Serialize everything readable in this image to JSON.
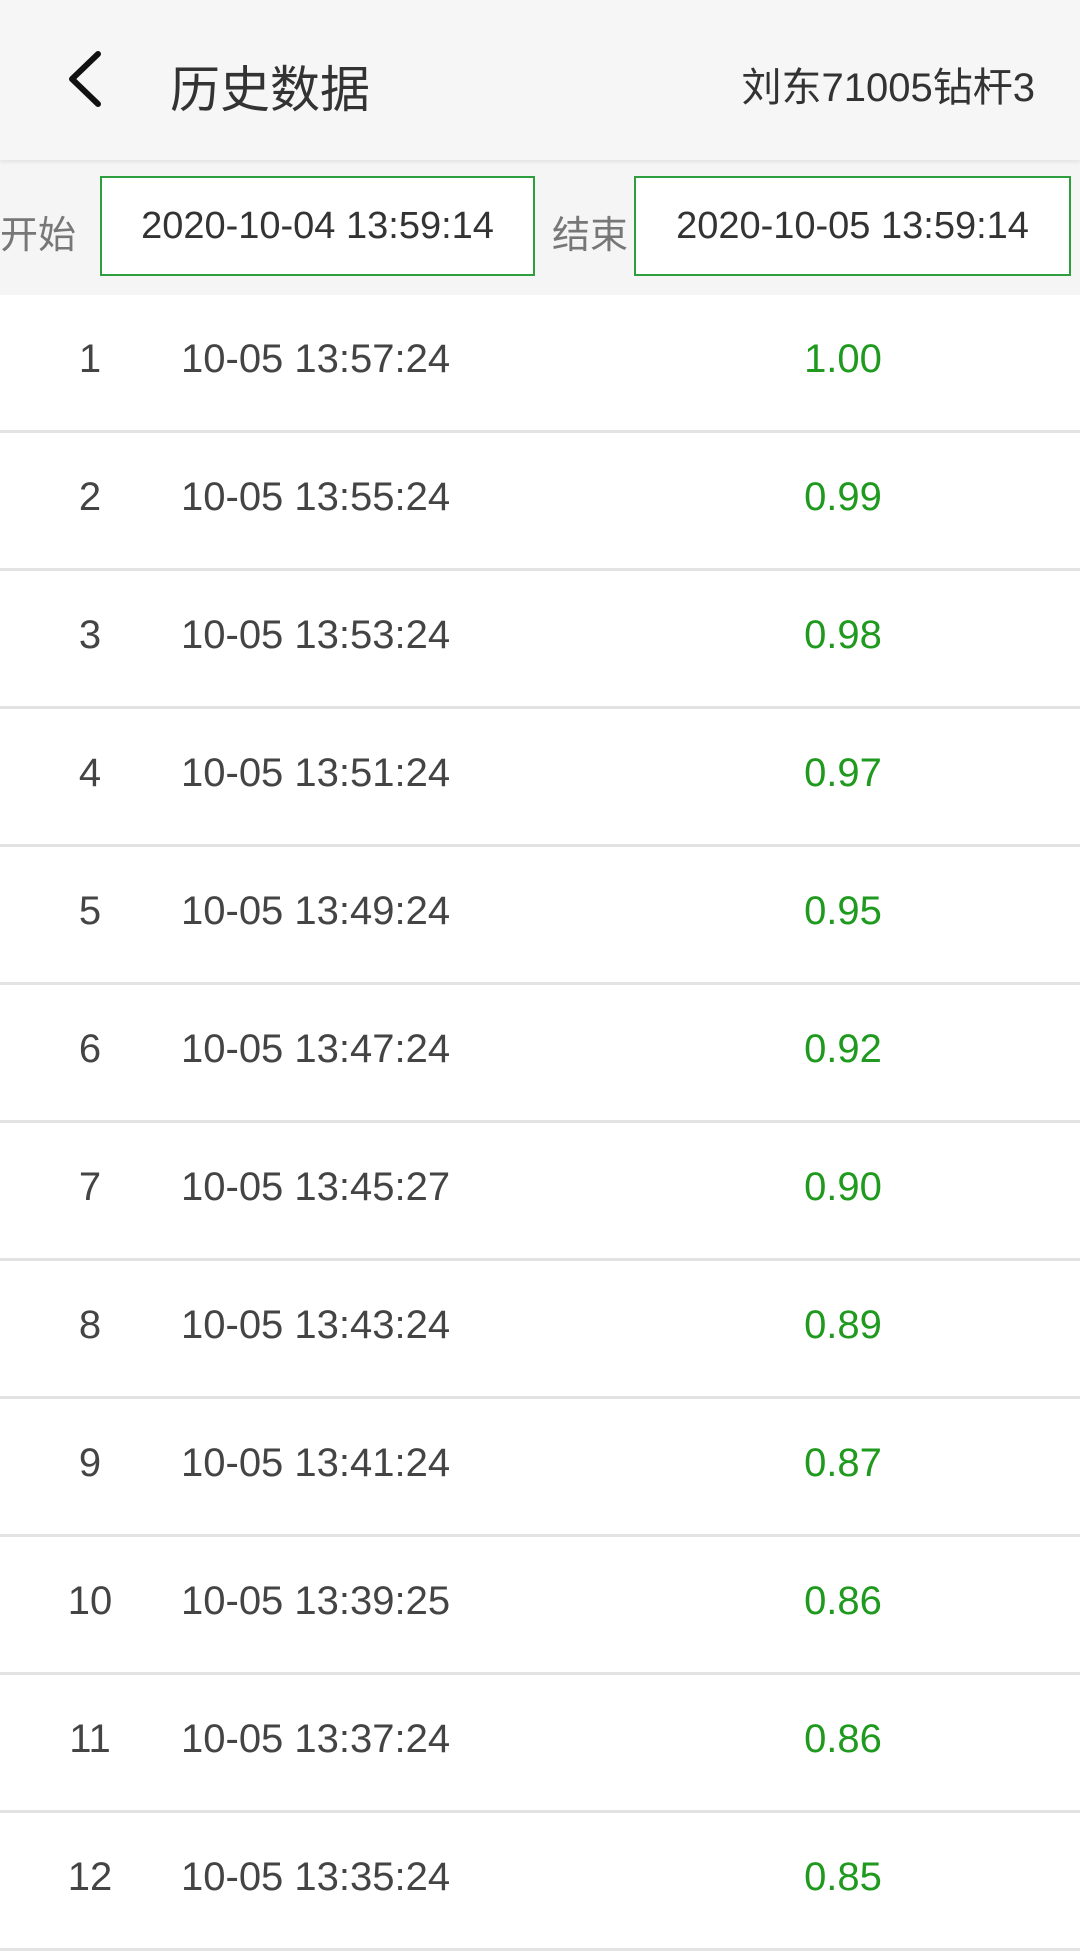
{
  "header": {
    "title": "历史数据",
    "device": "刘东71005钻杆3",
    "back_icon": "chevron-left-icon"
  },
  "filter": {
    "start_label": "开始",
    "start_value": "2020-10-04 13:59:14",
    "end_label": "结束",
    "end_value": "2020-10-05 13:59:14"
  },
  "colors": {
    "accent": "#2e9e3e",
    "value": "#1f9a1f"
  },
  "rows": [
    {
      "index": "1",
      "time": "10-05 13:57:24",
      "value": "1.00"
    },
    {
      "index": "2",
      "time": "10-05 13:55:24",
      "value": "0.99"
    },
    {
      "index": "3",
      "time": "10-05 13:53:24",
      "value": "0.98"
    },
    {
      "index": "4",
      "time": "10-05 13:51:24",
      "value": "0.97"
    },
    {
      "index": "5",
      "time": "10-05 13:49:24",
      "value": "0.95"
    },
    {
      "index": "6",
      "time": "10-05 13:47:24",
      "value": "0.92"
    },
    {
      "index": "7",
      "time": "10-05 13:45:27",
      "value": "0.90"
    },
    {
      "index": "8",
      "time": "10-05 13:43:24",
      "value": "0.89"
    },
    {
      "index": "9",
      "time": "10-05 13:41:24",
      "value": "0.87"
    },
    {
      "index": "10",
      "time": "10-05 13:39:25",
      "value": "0.86"
    },
    {
      "index": "11",
      "time": "10-05 13:37:24",
      "value": "0.86"
    },
    {
      "index": "12",
      "time": "10-05 13:35:24",
      "value": "0.85"
    }
  ]
}
